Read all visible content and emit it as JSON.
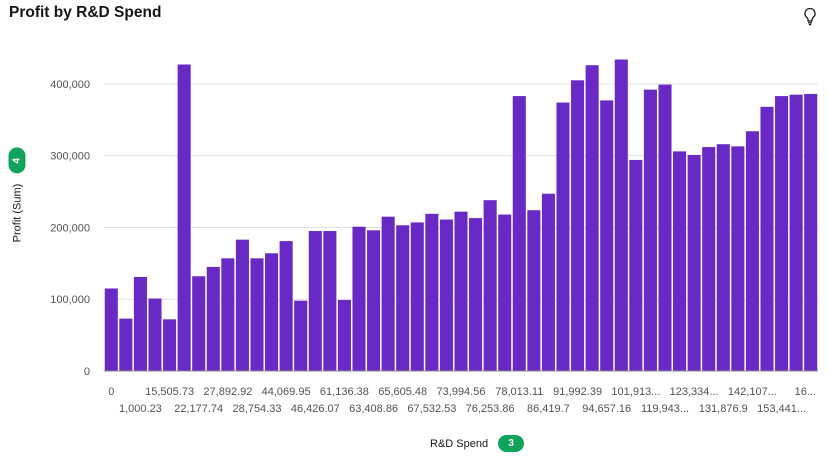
{
  "title": "Profit by R&D Spend",
  "icons": {
    "insight": "lightbulb-icon"
  },
  "axes": {
    "y_title": "Profit (Sum)",
    "y_badge": "4",
    "x_title": "R&D Spend",
    "x_badge": "3"
  },
  "chart_data": {
    "type": "bar",
    "bar_color": "#6929c4",
    "grid": true,
    "ylim": [
      0,
      450000
    ],
    "yticks": [
      0,
      100000,
      200000,
      300000,
      400000
    ],
    "ytick_labels": [
      "0",
      "100,000",
      "200,000",
      "300,000",
      "400,000"
    ],
    "xlabel": "R&D Spend",
    "ylabel": "Profit (Sum)",
    "x_tick_labels_row1": [
      "0",
      "15,505.73",
      "27,892.92",
      "44,069.95",
      "61,136.38",
      "65,605.48",
      "73,994.56",
      "78,013.11",
      "91,992.39",
      "101,913...",
      "123,334...",
      "142,107...",
      "16..."
    ],
    "x_tick_labels_row2": [
      "1,000.23",
      "22,177.74",
      "28,754.33",
      "46,426.07",
      "63,408.86",
      "67,532.53",
      "76,253.86",
      "86,419.7",
      "94,657.16",
      "119,943...",
      "131,876.9",
      "153,441..."
    ],
    "values": [
      115000,
      73000,
      131000,
      101000,
      72000,
      427000,
      132000,
      145000,
      157000,
      183000,
      157000,
      164000,
      181000,
      98000,
      195000,
      195000,
      99000,
      201000,
      196000,
      215000,
      203000,
      207000,
      219000,
      211000,
      222000,
      213000,
      238000,
      218000,
      383000,
      224000,
      247000,
      374000,
      405000,
      426000,
      377000,
      434000,
      294000,
      392000,
      399000,
      306000,
      301000,
      312000,
      316000,
      313000,
      334000,
      368000,
      383000,
      385000,
      386000
    ]
  }
}
